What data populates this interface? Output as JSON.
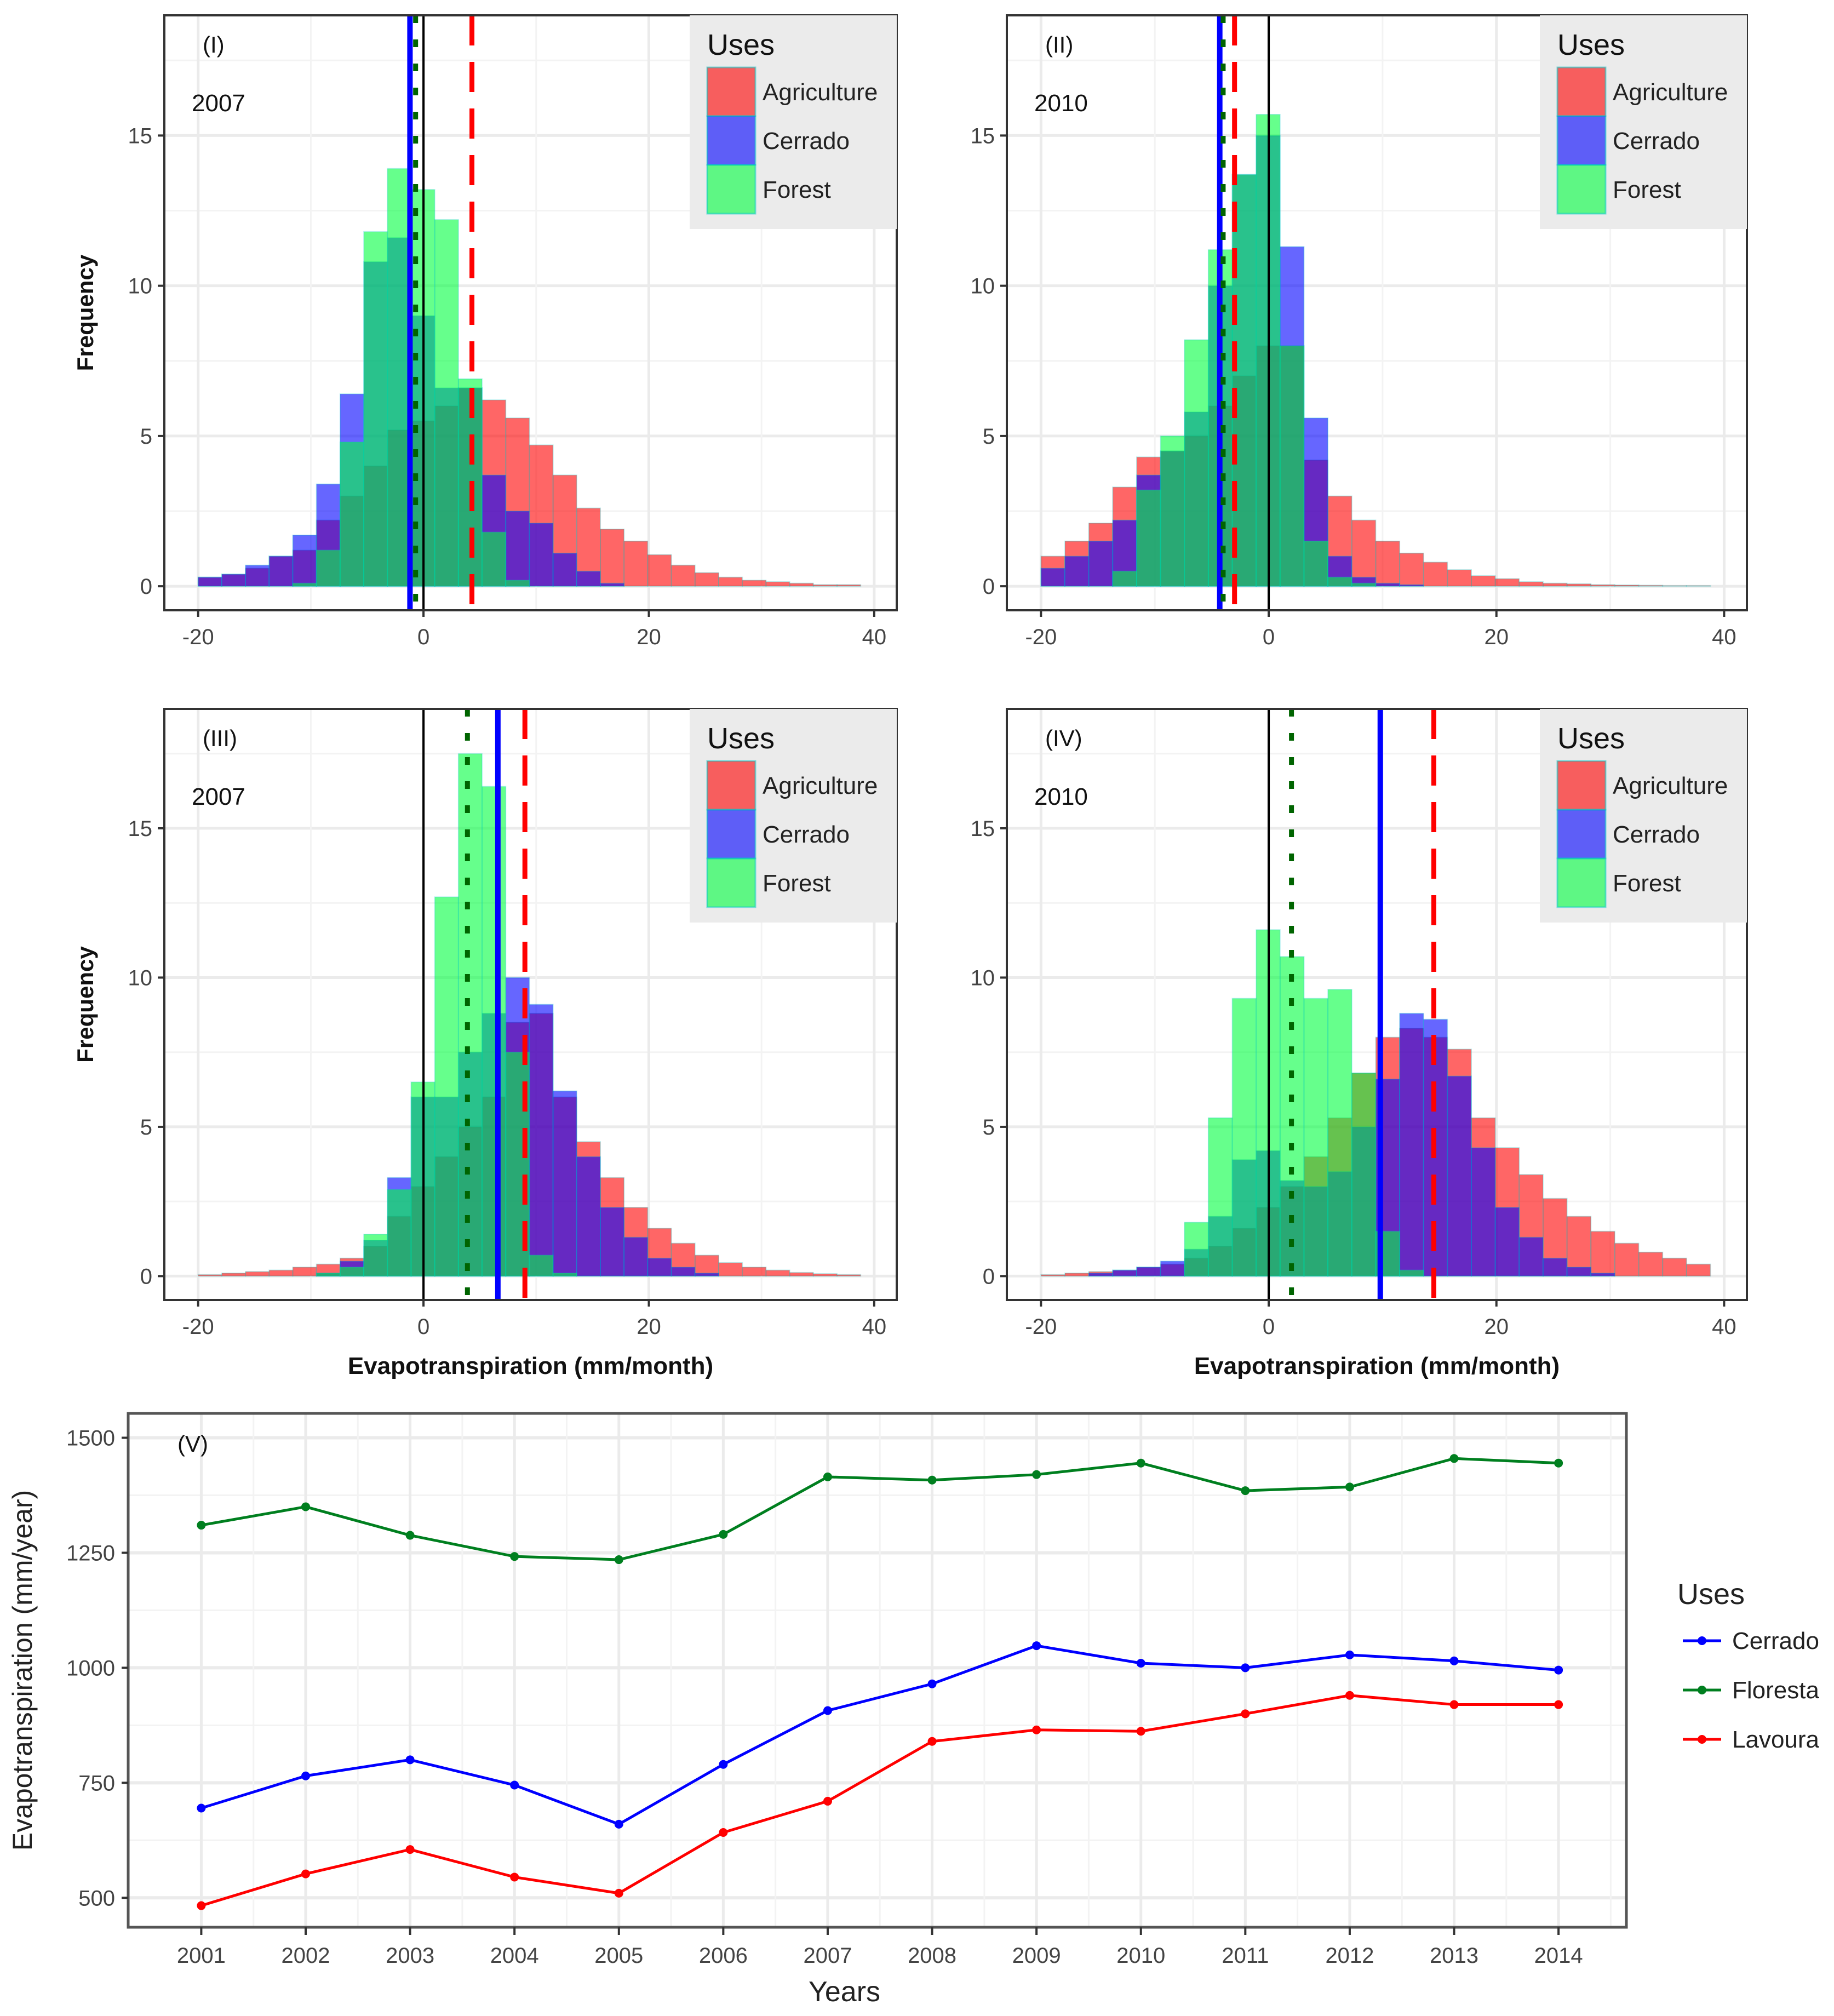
{
  "chart_data": [
    {
      "type": "bar",
      "panel": "(I)",
      "year": "2007",
      "xlabel": "",
      "ylabel": "Frequency",
      "xlim": [
        -23,
        42
      ],
      "ylim": [
        -0.8,
        19
      ],
      "xticks": [
        -20,
        0,
        20,
        40
      ],
      "yticks": [
        0,
        5,
        10,
        15
      ],
      "bin_start": -20,
      "bin_width": 2.1,
      "legend_title": "Uses",
      "legend_position": "top-right",
      "series": [
        {
          "name": "Agriculture",
          "color": "#ff0000",
          "values": [
            0.3,
            0.4,
            0.6,
            1.0,
            1.2,
            2.2,
            3.0,
            4.0,
            5.2,
            5.5,
            6.0,
            6.6,
            6.2,
            5.6,
            4.7,
            3.7,
            2.6,
            1.9,
            1.5,
            1.05,
            0.7,
            0.45,
            0.3,
            0.2,
            0.15,
            0.1,
            0.05,
            0.05
          ]
        },
        {
          "name": "Cerrado",
          "color": "#0000ff",
          "values": [
            0.3,
            0.4,
            0.7,
            1.0,
            1.7,
            3.4,
            6.4,
            10.8,
            11.6,
            9.0,
            6.6,
            6.6,
            3.7,
            2.5,
            2.1,
            1.1,
            0.5,
            0.1,
            0,
            0,
            0,
            0,
            0,
            0,
            0,
            0,
            0,
            0
          ]
        },
        {
          "name": "Forest",
          "color": "#00ff40",
          "values": [
            0,
            0,
            0,
            0,
            0.1,
            1.2,
            4.8,
            11.8,
            13.9,
            13.2,
            12.2,
            6.9,
            1.8,
            0.2,
            0,
            0,
            0,
            0,
            0,
            0,
            0,
            0,
            0,
            0,
            0,
            0,
            0,
            0
          ]
        }
      ],
      "vlines": [
        {
          "name": "zero",
          "x": 0,
          "color": "#000000",
          "style": "solid"
        },
        {
          "name": "cerrado-mean",
          "x": -1.2,
          "color": "#0000ff",
          "style": "solid"
        },
        {
          "name": "forest-mean",
          "x": -0.7,
          "color": "#006400",
          "style": "dotted"
        },
        {
          "name": "agriculture-mean",
          "x": 4.3,
          "color": "#ff0000",
          "style": "dashed"
        }
      ]
    },
    {
      "type": "bar",
      "panel": "(II)",
      "year": "2010",
      "xlabel": "",
      "ylabel": "",
      "xlim": [
        -23,
        42
      ],
      "ylim": [
        -0.8,
        19
      ],
      "xticks": [
        -20,
        0,
        20,
        40
      ],
      "yticks": [
        0,
        5,
        10,
        15
      ],
      "bin_start": -20,
      "bin_width": 2.1,
      "legend_title": "Uses",
      "legend_position": "top-right",
      "series": [
        {
          "name": "Agriculture",
          "color": "#ff0000",
          "values": [
            1.0,
            1.5,
            2.1,
            3.3,
            4.3,
            4.5,
            5.0,
            6.0,
            7.0,
            8.0,
            8.0,
            4.2,
            3.0,
            2.2,
            1.5,
            1.1,
            0.8,
            0.55,
            0.35,
            0.25,
            0.15,
            0.1,
            0.08,
            0.05,
            0.04,
            0.03,
            0.02,
            0.02
          ]
        },
        {
          "name": "Cerrado",
          "color": "#0000ff",
          "values": [
            0.6,
            1.0,
            1.5,
            2.2,
            3.7,
            4.5,
            5.8,
            10.0,
            13.7,
            15.0,
            11.3,
            5.6,
            1.0,
            0.3,
            0.1,
            0.05,
            0,
            0,
            0,
            0,
            0,
            0,
            0,
            0,
            0,
            0,
            0,
            0
          ]
        },
        {
          "name": "Forest",
          "color": "#00ff40",
          "values": [
            0,
            0,
            0,
            0.5,
            3.2,
            5.0,
            8.2,
            11.2,
            13.7,
            15.7,
            8.0,
            1.5,
            0.3,
            0.1,
            0,
            0,
            0,
            0,
            0,
            0,
            0,
            0,
            0,
            0,
            0,
            0,
            0,
            0
          ]
        }
      ],
      "vlines": [
        {
          "name": "zero",
          "x": 0,
          "color": "#000000",
          "style": "solid"
        },
        {
          "name": "cerrado-mean",
          "x": -4.3,
          "color": "#0000ff",
          "style": "solid"
        },
        {
          "name": "forest-mean",
          "x": -4.0,
          "color": "#006400",
          "style": "dotted"
        },
        {
          "name": "agriculture-mean",
          "x": -3.0,
          "color": "#ff0000",
          "style": "dashed"
        }
      ]
    },
    {
      "type": "bar",
      "panel": "(III)",
      "year": "2007",
      "xlabel": "Evapotranspiration (mm/month)",
      "ylabel": "Frequency",
      "xlim": [
        -23,
        42
      ],
      "ylim": [
        -0.8,
        19
      ],
      "xticks": [
        -20,
        0,
        20,
        40
      ],
      "yticks": [
        0,
        5,
        10,
        15
      ],
      "bin_start": -20,
      "bin_width": 2.1,
      "legend_title": "Uses",
      "legend_position": "top-right",
      "series": [
        {
          "name": "Agriculture",
          "color": "#ff0000",
          "values": [
            0.05,
            0.1,
            0.15,
            0.2,
            0.3,
            0.4,
            0.6,
            1.0,
            2.0,
            3.0,
            4.0,
            5.0,
            6.0,
            8.5,
            8.8,
            6.0,
            4.5,
            3.3,
            2.3,
            1.6,
            1.1,
            0.7,
            0.45,
            0.3,
            0.2,
            0.12,
            0.08,
            0.05
          ]
        },
        {
          "name": "Cerrado",
          "color": "#0000ff",
          "values": [
            0,
            0,
            0,
            0,
            0,
            0.1,
            0.5,
            1.2,
            3.3,
            6.0,
            6.0,
            7.5,
            8.8,
            10.0,
            9.1,
            6.2,
            4.0,
            2.3,
            1.3,
            0.6,
            0.3,
            0.1,
            0,
            0,
            0,
            0,
            0,
            0
          ]
        },
        {
          "name": "Forest",
          "color": "#00ff40",
          "values": [
            0,
            0,
            0,
            0,
            0,
            0.1,
            0.3,
            1.4,
            2.9,
            6.5,
            12.7,
            17.5,
            16.4,
            7.5,
            0.7,
            0.1,
            0,
            0,
            0,
            0,
            0,
            0,
            0,
            0,
            0,
            0,
            0,
            0
          ]
        }
      ],
      "vlines": [
        {
          "name": "zero",
          "x": 0,
          "color": "#000000",
          "style": "solid"
        },
        {
          "name": "forest-mean",
          "x": 3.9,
          "color": "#006400",
          "style": "dotted"
        },
        {
          "name": "cerrado-mean",
          "x": 6.6,
          "color": "#0000ff",
          "style": "solid"
        },
        {
          "name": "agriculture-mean",
          "x": 9.0,
          "color": "#ff0000",
          "style": "dashed"
        }
      ]
    },
    {
      "type": "bar",
      "panel": "(IV)",
      "year": "2010",
      "xlabel": "Evapotranspiration (mm/month)",
      "ylabel": "",
      "xlim": [
        -23,
        42
      ],
      "ylim": [
        -0.8,
        19
      ],
      "xticks": [
        -20,
        0,
        20,
        40
      ],
      "yticks": [
        0,
        5,
        10,
        15
      ],
      "bin_start": -20,
      "bin_width": 2.1,
      "legend_title": "Uses",
      "legend_position": "top-right",
      "series": [
        {
          "name": "Agriculture",
          "color": "#ff0000",
          "values": [
            0.05,
            0.1,
            0.15,
            0.2,
            0.3,
            0.4,
            0.6,
            1.0,
            1.6,
            2.3,
            3.0,
            4.0,
            5.3,
            6.8,
            8.0,
            8.3,
            8.0,
            7.6,
            5.3,
            4.3,
            3.4,
            2.6,
            2.0,
            1.5,
            1.1,
            0.8,
            0.6,
            0.4
          ]
        },
        {
          "name": "Cerrado",
          "color": "#0000ff",
          "values": [
            0,
            0,
            0.1,
            0.2,
            0.3,
            0.5,
            0.9,
            2.0,
            3.9,
            4.2,
            3.2,
            3.0,
            3.5,
            5.0,
            6.6,
            8.8,
            8.6,
            6.7,
            4.3,
            2.3,
            1.3,
            0.6,
            0.3,
            0.1,
            0,
            0,
            0,
            0
          ]
        },
        {
          "name": "Forest",
          "color": "#00ff40",
          "values": [
            0,
            0,
            0,
            0,
            0,
            0,
            1.8,
            5.3,
            9.3,
            11.6,
            10.7,
            9.3,
            9.6,
            6.8,
            1.5,
            0.2,
            0,
            0,
            0,
            0,
            0,
            0,
            0,
            0,
            0,
            0,
            0,
            0
          ]
        }
      ],
      "vlines": [
        {
          "name": "zero",
          "x": 0,
          "color": "#000000",
          "style": "solid"
        },
        {
          "name": "forest-mean",
          "x": 2.0,
          "color": "#006400",
          "style": "dotted"
        },
        {
          "name": "cerrado-mean",
          "x": 9.8,
          "color": "#0000ff",
          "style": "solid"
        },
        {
          "name": "agriculture-mean",
          "x": 14.5,
          "color": "#ff0000",
          "style": "dashed"
        }
      ]
    },
    {
      "type": "line",
      "panel": "(V)",
      "xlabel": "Years",
      "ylabel": "Evapotranspiration (mm/year)",
      "x": [
        2001,
        2002,
        2003,
        2004,
        2005,
        2006,
        2007,
        2008,
        2009,
        2010,
        2011,
        2012,
        2013,
        2014
      ],
      "xlim": [
        2000.3,
        2014.65
      ],
      "ylim": [
        436,
        1553
      ],
      "yticks": [
        500,
        750,
        1000,
        1250,
        1500
      ],
      "grid": true,
      "legend_title": "Uses",
      "legend_position": "right",
      "series": [
        {
          "name": "Cerrado",
          "color": "#0000ff",
          "values": [
            695,
            765,
            800,
            745,
            660,
            790,
            907,
            965,
            1048,
            1010,
            1000,
            1028,
            1015,
            995
          ]
        },
        {
          "name": "Floresta",
          "color": "#007f1f",
          "values": [
            1310,
            1350,
            1288,
            1242,
            1235,
            1290,
            1415,
            1408,
            1420,
            1445,
            1385,
            1393,
            1455,
            1445
          ]
        },
        {
          "name": "Lavoura",
          "color": "#ff0000",
          "values": [
            483,
            552,
            605,
            545,
            510,
            642,
            710,
            840,
            865,
            862,
            900,
            940,
            920,
            920
          ]
        }
      ]
    }
  ]
}
